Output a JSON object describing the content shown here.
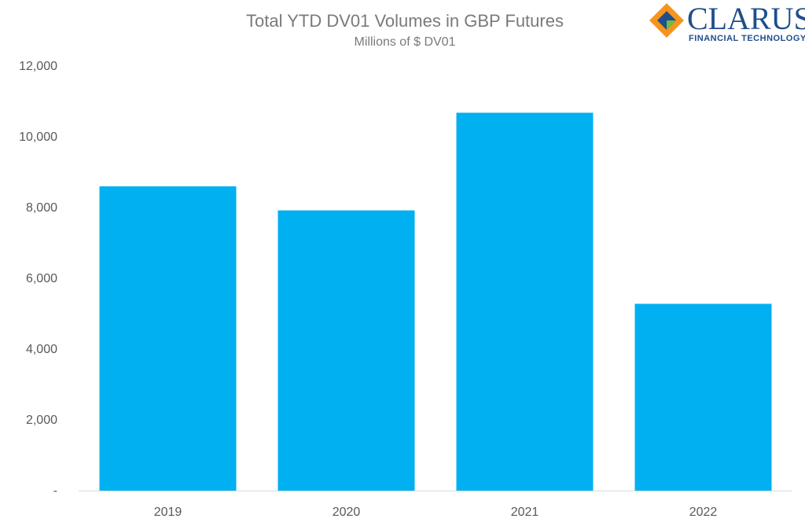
{
  "chart_data": {
    "type": "bar",
    "title": "Total YTD DV01 Volumes in GBP Futures",
    "subtitle": "Millions of $ DV01",
    "categories": [
      "2019",
      "2020",
      "2021",
      "2022"
    ],
    "values": [
      8600,
      7920,
      10680,
      5280
    ],
    "ylim": [
      0,
      12000
    ],
    "yticks": [
      0,
      2000,
      4000,
      6000,
      8000,
      10000,
      12000
    ],
    "ytick_labels": [
      "-",
      "2,000",
      "4,000",
      "6,000",
      "8,000",
      "10,000",
      "12,000"
    ],
    "grid": false,
    "legend": "none",
    "bar_color": "#00b0f0"
  },
  "logo": {
    "name": "CLARUS",
    "tagline": "FINANCIAL TECHNOLOGY",
    "colors": [
      "#f7941d",
      "#1f4e8c",
      "#6cbe45"
    ]
  }
}
